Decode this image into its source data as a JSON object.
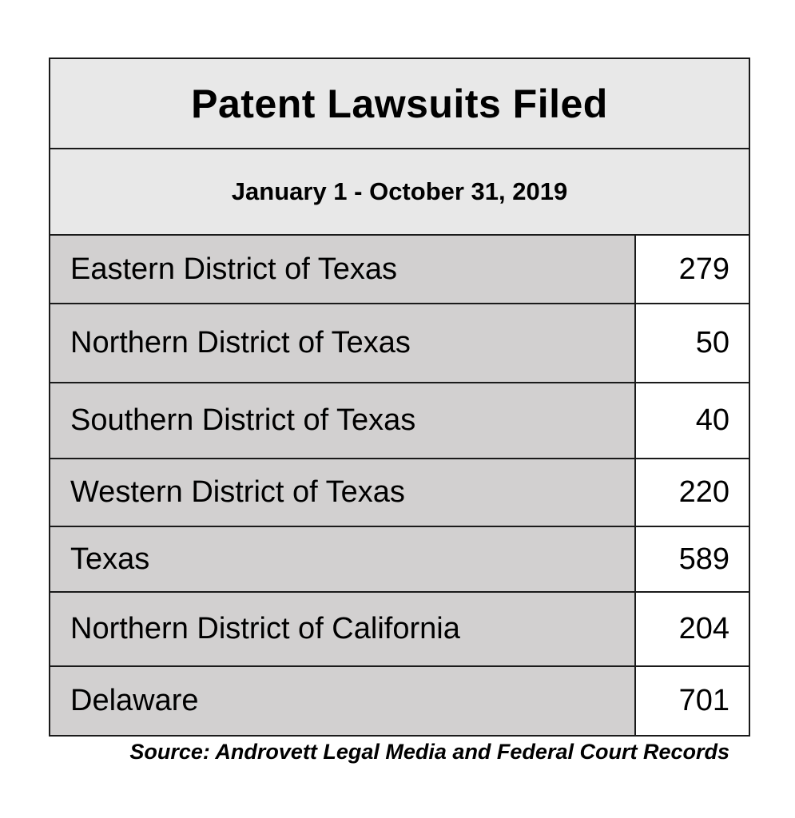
{
  "chart_data": {
    "type": "table",
    "title": "Patent Lawsuits Filed",
    "subtitle": "January 1 - October 31, 2019",
    "rows": [
      {
        "label": "Eastern District of Texas",
        "value": "279"
      },
      {
        "label": "Northern District of Texas",
        "value": "50"
      },
      {
        "label": "Southern District of Texas",
        "value": "40"
      },
      {
        "label": "Western District of Texas",
        "value": "220"
      },
      {
        "label": "Texas",
        "value": "589"
      },
      {
        "label": "Northern District of California",
        "value": "204"
      },
      {
        "label": "Delaware",
        "value": "701"
      }
    ],
    "source": "Source: Androvett Legal Media and Federal Court Records"
  },
  "colors": {
    "header_bg": "#e8e8e8",
    "label_bg": "#d2d0d0",
    "value_bg": "#ffffff",
    "border": "#1a1a1a"
  }
}
